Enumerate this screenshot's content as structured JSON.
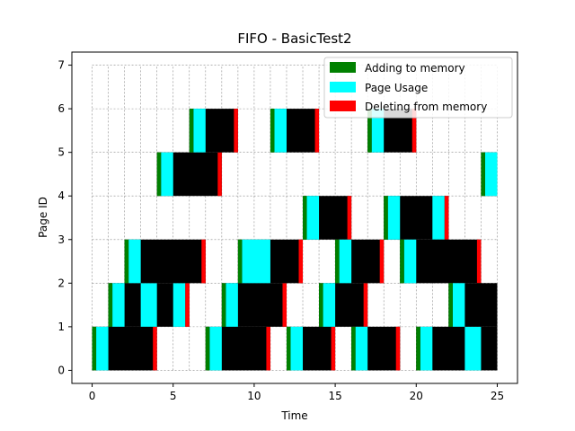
{
  "chart_data": {
    "type": "gantt",
    "title": "FIFO - BasicTest2",
    "xlabel": "Time",
    "ylabel": "Page ID",
    "xlim": [
      -1.25,
      26.25
    ],
    "ylim": [
      -0.3,
      7.3
    ],
    "xticks": [
      0,
      5,
      10,
      15,
      20,
      25
    ],
    "yticks": [
      0,
      1,
      2,
      3,
      4,
      5,
      6,
      7
    ],
    "grid": true,
    "legend_position": "top-right",
    "legend": [
      {
        "name": "Adding to memory",
        "color": "#008000"
      },
      {
        "name": "Page Usage",
        "color": "#00ffff"
      },
      {
        "name": "Deleting from memory",
        "color": "#ff0000"
      }
    ],
    "resident_color": "#000000",
    "lifetimes": [
      {
        "page": 0,
        "start": 0,
        "end": 4,
        "usage": [
          [
            0.25,
            1
          ]
        ]
      },
      {
        "page": 1,
        "start": 1,
        "end": 6,
        "usage": [
          [
            1.25,
            2
          ],
          [
            3,
            4
          ],
          [
            5,
            5.75
          ]
        ]
      },
      {
        "page": 2,
        "start": 2,
        "end": 7,
        "usage": [
          [
            2.25,
            3
          ]
        ]
      },
      {
        "page": 4,
        "start": 4,
        "end": 8,
        "usage": [
          [
            4.25,
            5
          ]
        ]
      },
      {
        "page": 5,
        "start": 6,
        "end": 9,
        "usage": [
          [
            6.25,
            7
          ]
        ]
      },
      {
        "page": 0,
        "start": 7,
        "end": 11,
        "usage": [
          [
            7.25,
            8
          ]
        ]
      },
      {
        "page": 1,
        "start": 8,
        "end": 12,
        "usage": [
          [
            8.25,
            9
          ]
        ]
      },
      {
        "page": 2,
        "start": 9,
        "end": 13,
        "usage": [
          [
            9.25,
            11
          ]
        ]
      },
      {
        "page": 5,
        "start": 11,
        "end": 14,
        "usage": [
          [
            11.25,
            12
          ]
        ]
      },
      {
        "page": 0,
        "start": 12,
        "end": 15,
        "usage": [
          [
            12.25,
            13
          ]
        ]
      },
      {
        "page": 3,
        "start": 13,
        "end": 16,
        "usage": [
          [
            13.25,
            14
          ]
        ]
      },
      {
        "page": 1,
        "start": 14,
        "end": 17,
        "usage": [
          [
            14.25,
            15
          ]
        ]
      },
      {
        "page": 2,
        "start": 15,
        "end": 18,
        "usage": [
          [
            15.25,
            16
          ]
        ]
      },
      {
        "page": 0,
        "start": 16,
        "end": 19,
        "usage": [
          [
            16.25,
            17
          ]
        ]
      },
      {
        "page": 5,
        "start": 17,
        "end": 20,
        "usage": [
          [
            17.25,
            18
          ]
        ]
      },
      {
        "page": 3,
        "start": 18,
        "end": 22,
        "usage": [
          [
            18.25,
            19
          ],
          [
            21,
            21.75
          ]
        ]
      },
      {
        "page": 2,
        "start": 19,
        "end": 24,
        "usage": [
          [
            19.25,
            20
          ]
        ]
      },
      {
        "page": 0,
        "start": 20,
        "end": 25,
        "usage": [
          [
            20.25,
            21
          ],
          [
            23,
            24
          ]
        ]
      },
      {
        "page": 1,
        "start": 22,
        "end": 25,
        "usage": [
          [
            22.25,
            23
          ]
        ]
      },
      {
        "page": 4,
        "start": 24,
        "end": 25,
        "usage": [
          [
            24.25,
            25
          ]
        ]
      }
    ]
  }
}
